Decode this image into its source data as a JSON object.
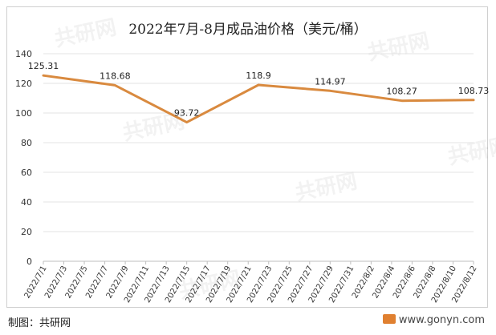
{
  "chart_data": {
    "type": "line",
    "title": "2022年7月-8月成品油价格（美元/桶）",
    "x": [
      "2022/7/1",
      "2022/7/3",
      "2022/7/5",
      "2022/7/7",
      "2022/7/9",
      "2022/7/11",
      "2022/7/13",
      "2022/7/15",
      "2022/7/17",
      "2022/7/19",
      "2022/7/21",
      "2022/7/23",
      "2022/7/25",
      "2022/7/27",
      "2022/7/29",
      "2022/7/31",
      "2022/8/2",
      "2022/8/4",
      "2022/8/6",
      "2022/8/8",
      "2022/8/10",
      "2022/8/12"
    ],
    "points": [
      {
        "x": "2022/7/1",
        "y": 125.31
      },
      {
        "x": "2022/7/8",
        "y": 118.68
      },
      {
        "x": "2022/7/15",
        "y": 93.72
      },
      {
        "x": "2022/7/22",
        "y": 118.9
      },
      {
        "x": "2022/7/29",
        "y": 114.97
      },
      {
        "x": "2022/8/5",
        "y": 108.27
      },
      {
        "x": "2022/8/12",
        "y": 108.73
      }
    ],
    "data_labels": [
      "125.31",
      "118.68",
      "93.72",
      "118.9",
      "114.97",
      "108.27",
      "108.73"
    ],
    "yticks": [
      "0",
      "20",
      "40",
      "60",
      "80",
      "100",
      "120",
      "140"
    ],
    "ylim": [
      0,
      140
    ],
    "grid": true,
    "line_color": "#d98a3f"
  },
  "watermark": "共研网",
  "footer": {
    "source": "制图：共研网",
    "site": "www.gonyn.com"
  }
}
